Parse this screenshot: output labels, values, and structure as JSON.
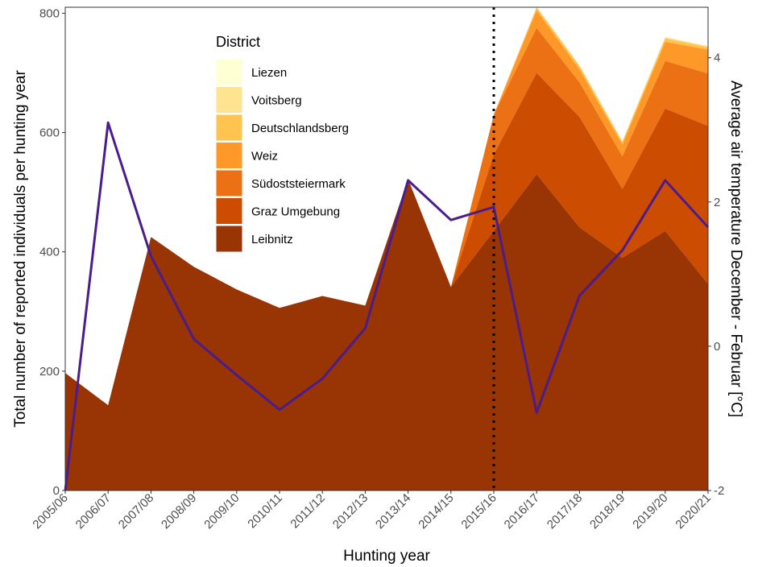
{
  "chart_data": {
    "type": "area",
    "categories": [
      "2005/06",
      "2006/07",
      "2007/08",
      "2008/09",
      "2009/10",
      "2010/11",
      "2011/12",
      "2012/13",
      "2013/14",
      "2014/15",
      "2015/16",
      "2016/17",
      "2017/18",
      "2018/19",
      "2019/20",
      "2020/21"
    ],
    "xlabel": "Hunting year",
    "ylabel": "Total number of reported individuals per hunting year",
    "y2label": "Average air temperature December - Februar [°C]",
    "ylim": [
      0,
      810
    ],
    "yticks": [
      0,
      200,
      400,
      600,
      800
    ],
    "y2lim": [
      -2,
      4.7
    ],
    "y2ticks": [
      -2,
      0,
      2,
      4
    ],
    "grid": false,
    "legend": {
      "title": "District",
      "position": "top-left inside",
      "order": [
        "Liezen",
        "Voitsberg",
        "Deutschlandsberg",
        "Weiz",
        "Südoststeiermark",
        "Graz Umgebung",
        "Leibnitz"
      ]
    },
    "series": [
      {
        "name": "Leibnitz",
        "color": "#993404",
        "values": [
          197,
          143,
          425,
          375,
          337,
          306,
          326,
          310,
          522,
          341,
          435,
          530,
          441,
          390,
          435,
          346
        ]
      },
      {
        "name": "Graz Umgebung",
        "color": "#CC4C02",
        "values": [
          0,
          0,
          0,
          0,
          0,
          0,
          0,
          0,
          0,
          0,
          128,
          170,
          185,
          115,
          205,
          265
        ]
      },
      {
        "name": "Südoststeiermark",
        "color": "#EC7014",
        "values": [
          0,
          0,
          0,
          0,
          0,
          0,
          0,
          0,
          0,
          0,
          67,
          75,
          58,
          55,
          80,
          88
        ]
      },
      {
        "name": "Weiz",
        "color": "#FE9929",
        "values": [
          0,
          0,
          0,
          0,
          0,
          0,
          0,
          0,
          0,
          0,
          0,
          30,
          22,
          20,
          32,
          40
        ]
      },
      {
        "name": "Deutschlandsberg",
        "color": "#FEC44F",
        "values": [
          0,
          0,
          0,
          0,
          0,
          0,
          0,
          0,
          0,
          0,
          0,
          5,
          6,
          5,
          6,
          4
        ]
      },
      {
        "name": "Voitsberg",
        "color": "#FEE391",
        "values": [
          0,
          0,
          0,
          0,
          0,
          0,
          0,
          0,
          0,
          0,
          0,
          0,
          0,
          0,
          2,
          2
        ]
      },
      {
        "name": "Liezen",
        "color": "#FFFFD4",
        "values": [
          0,
          0,
          0,
          0,
          0,
          0,
          0,
          0,
          0,
          0,
          0,
          0,
          0,
          0,
          0,
          0
        ]
      }
    ],
    "temperature_line": {
      "color": "#4B1C8C",
      "axis": "right",
      "values": [
        -2.0,
        3.1,
        1.25,
        0.1,
        -0.4,
        -0.88,
        -0.45,
        0.25,
        2.3,
        1.75,
        1.93,
        -0.92,
        0.7,
        1.33,
        2.3,
        1.65
      ]
    },
    "vertical_line": {
      "at": "2015/16",
      "style": "dotted",
      "color": "#000000"
    }
  }
}
